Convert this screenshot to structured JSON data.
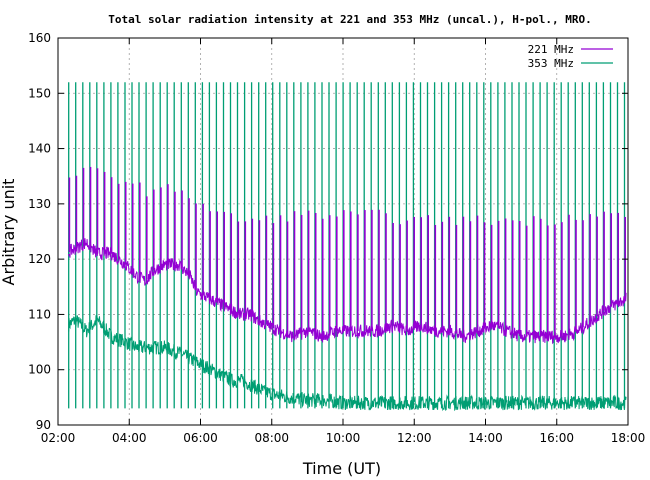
{
  "chart_data": {
    "type": "line",
    "title": "Total solar radiation intensity at 221 and 353 MHz (uncal.), H-pol., MRO.",
    "xlabel": "Time (UT)",
    "ylabel": "Arbitrary unit",
    "x_range_hours": [
      2.0,
      18.0
    ],
    "ylim": [
      90,
      160
    ],
    "x_ticks": [
      {
        "value": 2,
        "label": "02:00"
      },
      {
        "value": 4,
        "label": "04:00"
      },
      {
        "value": 6,
        "label": "06:00"
      },
      {
        "value": 8,
        "label": "08:00"
      },
      {
        "value": 10,
        "label": "10:00"
      },
      {
        "value": 12,
        "label": "12:00"
      },
      {
        "value": 14,
        "label": "14:00"
      },
      {
        "value": 16,
        "label": "16:00"
      },
      {
        "value": 18,
        "label": "18:00"
      }
    ],
    "y_ticks": [
      90,
      100,
      110,
      120,
      130,
      140,
      150,
      160
    ],
    "grid": true,
    "legend_position": "top-right",
    "series": [
      {
        "name": "221 MHz",
        "color": "#9400d3",
        "baseline": [
          [
            2.25,
            121
          ],
          [
            2.5,
            122
          ],
          [
            2.8,
            123
          ],
          [
            3.1,
            121
          ],
          [
            3.5,
            121
          ],
          [
            3.9,
            119
          ],
          [
            4.2,
            117
          ],
          [
            4.45,
            116
          ],
          [
            4.7,
            118
          ],
          [
            5.0,
            119
          ],
          [
            5.4,
            119
          ],
          [
            5.7,
            117
          ],
          [
            5.9,
            114
          ],
          [
            6.2,
            113
          ],
          [
            6.5,
            112
          ],
          [
            6.8,
            111
          ],
          [
            7.1,
            110
          ],
          [
            7.4,
            110
          ],
          [
            7.6,
            109
          ],
          [
            7.9,
            108
          ],
          [
            8.2,
            107
          ],
          [
            8.6,
            106
          ],
          [
            9.0,
            107
          ],
          [
            9.4,
            106
          ],
          [
            9.8,
            107
          ],
          [
            10.2,
            107
          ],
          [
            10.6,
            107
          ],
          [
            11.0,
            107
          ],
          [
            11.4,
            108
          ],
          [
            11.8,
            107
          ],
          [
            12.2,
            108
          ],
          [
            12.6,
            107
          ],
          [
            13.0,
            107
          ],
          [
            13.4,
            106
          ],
          [
            13.8,
            107
          ],
          [
            14.2,
            108
          ],
          [
            14.6,
            107
          ],
          [
            15.0,
            106
          ],
          [
            15.4,
            106
          ],
          [
            15.8,
            106
          ],
          [
            16.2,
            106
          ],
          [
            16.6,
            107
          ],
          [
            17.0,
            109
          ],
          [
            17.4,
            111
          ],
          [
            17.7,
            112
          ],
          [
            18.0,
            113
          ]
        ],
        "spike_level": [
          [
            2.25,
            135
          ],
          [
            3.0,
            136
          ],
          [
            3.5,
            135
          ],
          [
            4.0,
            134
          ],
          [
            4.6,
            132
          ],
          [
            5.4,
            133
          ],
          [
            6.0,
            130
          ],
          [
            6.6,
            128
          ],
          [
            7.2,
            127
          ],
          [
            7.8,
            127
          ],
          [
            8.6,
            128
          ],
          [
            9.4,
            128
          ],
          [
            10.2,
            128
          ],
          [
            11.0,
            128
          ],
          [
            11.8,
            127
          ],
          [
            12.6,
            127
          ],
          [
            13.4,
            127
          ],
          [
            14.2,
            127
          ],
          [
            15.0,
            127
          ],
          [
            15.8,
            127
          ],
          [
            16.6,
            128
          ],
          [
            17.4,
            128
          ],
          [
            18.0,
            128
          ]
        ]
      },
      {
        "name": "353 MHz",
        "color": "#009e73",
        "baseline": [
          [
            2.25,
            108
          ],
          [
            2.5,
            109
          ],
          [
            2.8,
            107
          ],
          [
            3.1,
            109
          ],
          [
            3.5,
            106
          ],
          [
            3.9,
            105
          ],
          [
            4.2,
            104
          ],
          [
            4.6,
            104
          ],
          [
            5.0,
            104
          ],
          [
            5.4,
            103
          ],
          [
            5.7,
            102
          ],
          [
            6.0,
            101
          ],
          [
            6.3,
            100
          ],
          [
            6.6,
            99
          ],
          [
            6.9,
            98
          ],
          [
            7.2,
            98
          ],
          [
            7.5,
            97
          ],
          [
            7.8,
            96
          ],
          [
            8.1,
            95.5
          ],
          [
            8.5,
            95
          ],
          [
            9.0,
            94.5
          ],
          [
            9.5,
            94.5
          ],
          [
            10.0,
            94
          ],
          [
            11.0,
            94
          ],
          [
            12.0,
            94
          ],
          [
            13.0,
            94
          ],
          [
            14.0,
            94
          ],
          [
            15.0,
            94
          ],
          [
            16.0,
            94
          ],
          [
            17.0,
            94
          ],
          [
            18.0,
            94
          ]
        ],
        "spike_top": 152,
        "spike_bottom": 93,
        "spike_start": 2.3,
        "spike_interval": 0.1975,
        "spike_end": 17.95
      }
    ]
  }
}
